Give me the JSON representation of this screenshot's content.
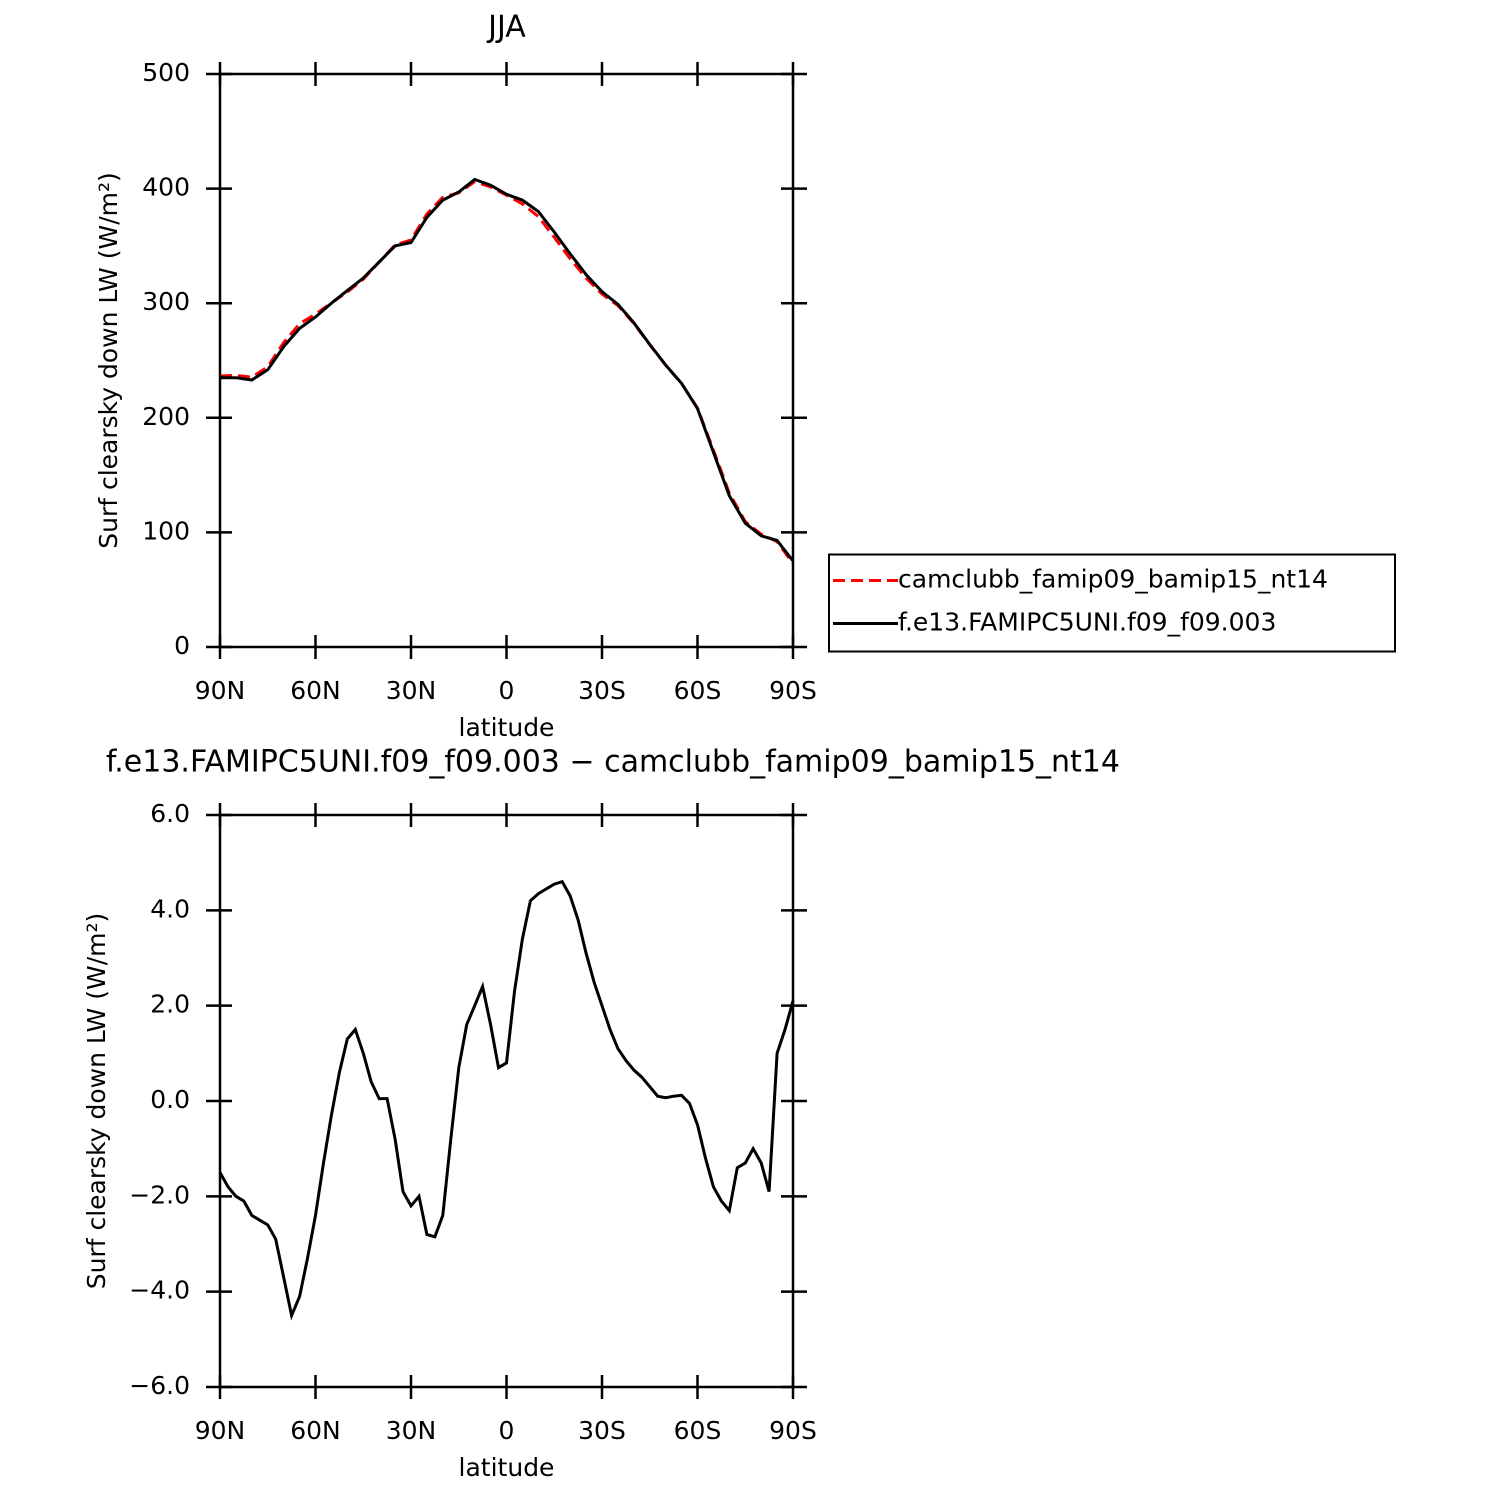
{
  "chart_data": [
    {
      "type": "line",
      "title": "JJA",
      "xlabel": "latitude",
      "ylabel": "Surf clearsky down LW (W/m²)",
      "x": [
        90,
        85,
        80,
        75,
        70,
        65,
        60,
        55,
        50,
        45,
        40,
        35,
        30,
        25,
        20,
        15,
        10,
        5,
        0,
        -5,
        -10,
        -15,
        -20,
        -25,
        -30,
        -35,
        -40,
        -45,
        -50,
        -55,
        -60,
        -65,
        -70,
        -75,
        -80,
        -85,
        -90
      ],
      "series": [
        {
          "name": "camclubb_famip09_bamip15_nt14",
          "color": "#ff0000",
          "linestyle": "dashed",
          "values": [
            236.5,
            237,
            235.4,
            244.6,
            265.7,
            282.1,
            290.4,
            300.3,
            309.7,
            321,
            335.95,
            350.8,
            355.2,
            377.8,
            392.4,
            396.3,
            406,
            401.4,
            394.2,
            386.6,
            375.65,
            357.45,
            338.7,
            321.9,
            308,
            297.9,
            282.35,
            263.7,
            245.93,
            229.88,
            208.5,
            171.8,
            134.3,
            109.3,
            98.3,
            92,
            72.9
          ]
        },
        {
          "name": "f.e13.FAMIPC5UNI.f09_f09.003",
          "color": "#000000",
          "linestyle": "solid",
          "values": [
            235,
            235,
            233,
            242,
            262,
            278,
            288,
            300,
            311,
            322,
            336,
            350,
            353,
            375,
            390,
            397,
            408,
            403,
            395,
            390,
            380,
            362,
            343,
            325,
            310,
            299,
            283,
            264,
            246,
            230,
            208,
            170,
            132,
            108,
            97,
            93,
            75
          ]
        }
      ],
      "xlim": [
        90,
        -90
      ],
      "xticks": [
        {
          "value": 90,
          "label": "90N"
        },
        {
          "value": 60,
          "label": "60N"
        },
        {
          "value": 30,
          "label": "30N"
        },
        0,
        {
          "value": -30,
          "label": "30S"
        },
        {
          "value": -60,
          "label": "60S"
        },
        {
          "value": -90,
          "label": "90S"
        }
      ],
      "ylim": [
        0,
        500
      ],
      "yticks": [
        0,
        100,
        200,
        300,
        400,
        500
      ],
      "legend": "right"
    },
    {
      "type": "line",
      "title": "f.e13.FAMIPC5UNI.f09_f09.003 − camclubb_famip09_bamip15_nt14",
      "xlabel": "latitude",
      "ylabel": "Surf clearsky down LW (W/m²)",
      "x": [
        90,
        87.5,
        85,
        82.5,
        80,
        77.5,
        75,
        72.5,
        70,
        67.5,
        65,
        62.5,
        60,
        57.5,
        55,
        52.5,
        50,
        47.5,
        45,
        42.5,
        40,
        37.5,
        35,
        32.5,
        30,
        27.5,
        25,
        22.5,
        20,
        17.5,
        15,
        12.5,
        10,
        7.5,
        5,
        2.5,
        0,
        -2.5,
        -5,
        -7.5,
        -10,
        -12.5,
        -15,
        -17.5,
        -20,
        -22.5,
        -25,
        -27.5,
        -30,
        -32.5,
        -35,
        -37.5,
        -40,
        -42.5,
        -45,
        -47.5,
        -50,
        -52.5,
        -55,
        -57.5,
        -60,
        -62.5,
        -65,
        -67.5,
        -70,
        -72.5,
        -75,
        -77.5,
        -80,
        -82.5,
        -85,
        -87.5,
        -90
      ],
      "series": [
        {
          "name": null,
          "color": "#000000",
          "linestyle": "solid",
          "values": [
            -1.5,
            -1.8,
            -2.0,
            -2.1,
            -2.4,
            -2.5,
            -2.6,
            -2.9,
            -3.7,
            -4.5,
            -4.1,
            -3.3,
            -2.4,
            -1.3,
            -0.3,
            0.6,
            1.3,
            1.5,
            1.0,
            0.4,
            0.05,
            0.05,
            -0.8,
            -1.9,
            -2.2,
            -2.0,
            -2.8,
            -2.85,
            -2.4,
            -0.8,
            0.7,
            1.6,
            2.0,
            2.4,
            1.6,
            0.7,
            0.8,
            2.3,
            3.4,
            4.2,
            4.35,
            4.45,
            4.55,
            4.6,
            4.3,
            3.8,
            3.1,
            2.5,
            2.0,
            1.5,
            1.1,
            0.85,
            0.65,
            0.5,
            0.3,
            0.1,
            0.07,
            0.1,
            0.12,
            -0.05,
            -0.5,
            -1.2,
            -1.8,
            -2.1,
            -2.3,
            -1.4,
            -1.3,
            -1.0,
            -1.3,
            -1.9,
            1.0,
            1.5,
            2.1
          ]
        }
      ],
      "xlim": [
        90,
        -90
      ],
      "xticks": [
        {
          "value": 90,
          "label": "90N"
        },
        {
          "value": 60,
          "label": "60N"
        },
        {
          "value": 30,
          "label": "30N"
        },
        0,
        {
          "value": -30,
          "label": "30S"
        },
        {
          "value": -60,
          "label": "60S"
        },
        {
          "value": -90,
          "label": "90S"
        }
      ],
      "ylim": [
        -6,
        6
      ],
      "yticks": [
        {
          "value": -6,
          "label": "−6.0"
        },
        {
          "value": -4,
          "label": "−4.0"
        },
        {
          "value": -2,
          "label": "−2.0"
        },
        {
          "value": 0,
          "label": "0.0"
        },
        {
          "value": 2,
          "label": "2.0"
        },
        {
          "value": 4,
          "label": "4.0"
        },
        {
          "value": 6,
          "label": "6.0"
        }
      ]
    }
  ]
}
